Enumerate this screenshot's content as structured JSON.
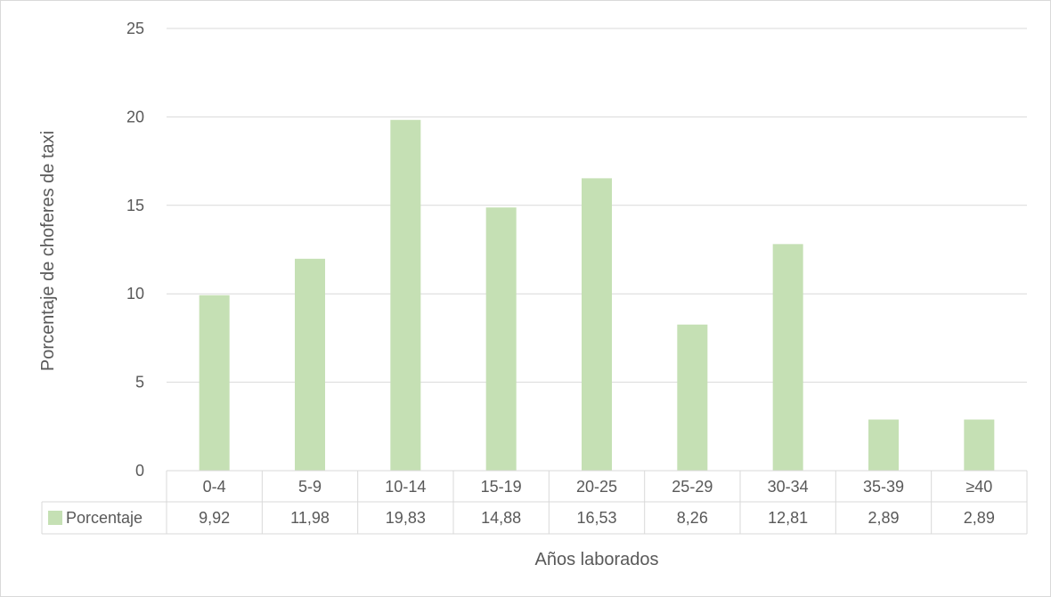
{
  "chart_data": {
    "type": "bar",
    "categories": [
      "0-4",
      "5-9",
      "10-14",
      "15-19",
      "20-25",
      "25-29",
      "30-34",
      "35-39",
      "≥40"
    ],
    "series": [
      {
        "name": "Porcentaje",
        "values": [
          9.92,
          11.98,
          19.83,
          14.88,
          16.53,
          8.26,
          12.81,
          2.89,
          2.89
        ],
        "value_labels": [
          "9,92",
          "11,98",
          "19,83",
          "14,88",
          "16,53",
          "8,26",
          "12,81",
          "2,89",
          "2,89"
        ],
        "color": "#c5e0b4"
      }
    ],
    "title": "",
    "xlabel": "Años laborados",
    "ylabel": "Porcentaje de choferes de taxi",
    "ylim": [
      0,
      25
    ],
    "yticks": [
      "0",
      "5",
      "10",
      "15",
      "20",
      "25"
    ],
    "grid": true,
    "legend": "data-table-left",
    "gridline_color": "#d9d9d9",
    "text_color": "#595959"
  }
}
